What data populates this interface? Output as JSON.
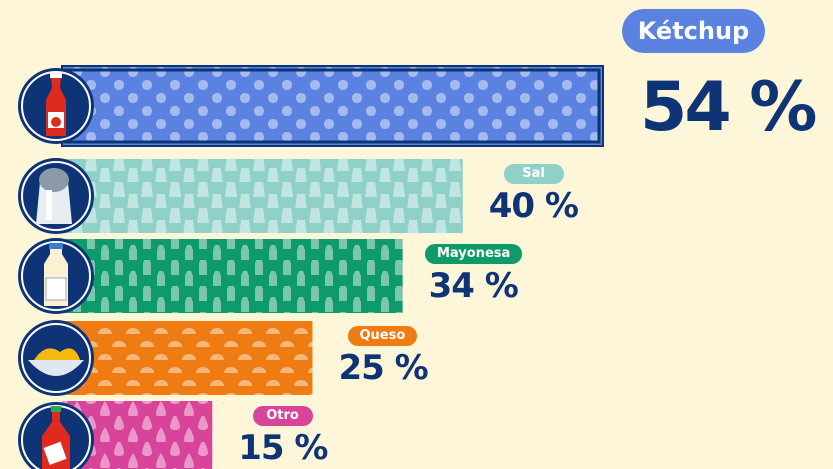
{
  "chart_data": {
    "type": "bar",
    "orientation": "horizontal",
    "categories": [
      "Kétchup",
      "Sal",
      "Mayonesa",
      "Queso",
      "Otro"
    ],
    "values": [
      54,
      40,
      34,
      25,
      15
    ],
    "value_labels": [
      "54 %",
      "40 %",
      "34 %",
      "25 %",
      "15 %"
    ],
    "unit": "%",
    "xlim": [
      0,
      54
    ],
    "grid": false,
    "legend": "none",
    "icons": [
      "ketchup-bottle-icon",
      "salt-shaker-icon",
      "mayonnaise-bottle-icon",
      "cheese-sauce-bowl-icon",
      "hot-sauce-bottle-icon"
    ]
  },
  "colors": {
    "background": "#fdf6d8",
    "accent_dark": "#0f3476",
    "bars": [
      "#5b82e0",
      "#8fd0c8",
      "#0f9a6a",
      "#ef7c12",
      "#d7449a"
    ],
    "labels": [
      "#5b82e0",
      "#8fd0c8",
      "#0f9a6a",
      "#ef7c12",
      "#d7449a"
    ]
  }
}
